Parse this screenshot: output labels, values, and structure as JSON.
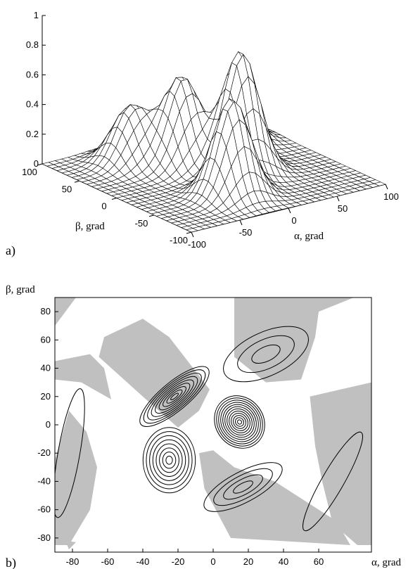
{
  "chart_data": [
    {
      "type": "surface",
      "panel_label": "a)",
      "xlabel": "α, grad",
      "ylabel": "β, grad",
      "z_ticks": [
        "0",
        "0.2",
        "0.4",
        "0.6",
        "0.8",
        "1"
      ],
      "x_ticks": [
        "-100",
        "-50",
        "0",
        "50",
        "100"
      ],
      "y_ticks": [
        "100",
        "50",
        "0",
        "-50",
        "-100"
      ],
      "xlim": [
        -100,
        100
      ],
      "ylim": [
        -100,
        100
      ],
      "zlim": [
        0,
        1
      ],
      "grid_lines": 31,
      "peaks": [
        {
          "alpha": 20,
          "beta": -10,
          "z": 0.82
        },
        {
          "alpha": -10,
          "beta": 30,
          "z": 0.6
        },
        {
          "alpha": -20,
          "beta": -50,
          "z": 0.66
        },
        {
          "alpha": -40,
          "beta": 60,
          "z": 0.38
        },
        {
          "alpha": 60,
          "beta": 50,
          "z": 0.32
        }
      ]
    },
    {
      "type": "contour",
      "panel_label": "b)",
      "xlabel": "α, grad",
      "ylabel": "β, grad",
      "x_ticks": [
        -80,
        -60,
        -40,
        -20,
        0,
        20,
        40,
        60
      ],
      "y_ticks": [
        80,
        60,
        40,
        20,
        0,
        -20,
        -40,
        -60,
        -80
      ],
      "xlim": [
        -90,
        90
      ],
      "ylim": [
        -90,
        90
      ],
      "shading_color": "#c0c0c0",
      "contour_centers": [
        {
          "alpha": -22,
          "beta": 20,
          "levels": 9
        },
        {
          "alpha": 15,
          "beta": 2,
          "levels": 12
        },
        {
          "alpha": -25,
          "beta": -25,
          "levels": 8
        },
        {
          "alpha": 17,
          "beta": -44,
          "levels": 4
        },
        {
          "alpha": 30,
          "beta": 50,
          "levels": 3
        },
        {
          "alpha": 68,
          "beta": -40,
          "levels": 1
        },
        {
          "alpha": -82,
          "beta": -20,
          "levels": 1
        }
      ]
    }
  ]
}
